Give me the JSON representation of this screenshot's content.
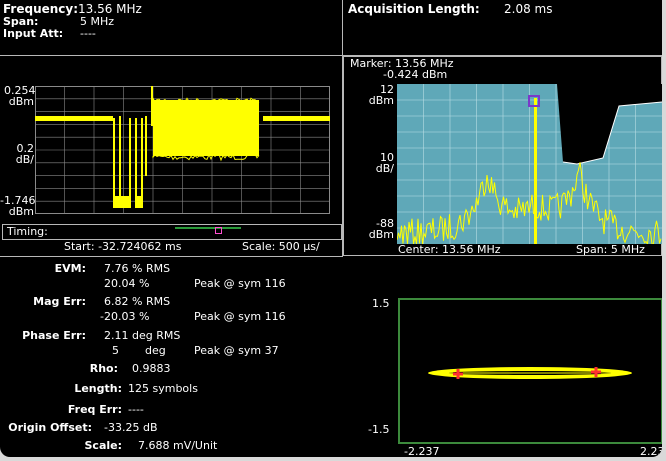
{
  "header": {
    "frequency_label": "Frequency:",
    "frequency_value": "13.56 MHz",
    "span_label": "Span:",
    "span_value": "5 MHz",
    "input_att_label": "Input Att:",
    "input_att_value": "----",
    "acq_label": "Acquisition Length:",
    "acq_value": "2.08 ms"
  },
  "time_plot": {
    "top_value": "0.254",
    "top_unit": "dBm",
    "mid_value": "0.2",
    "mid_unit": "dB/",
    "bottom_value": "-1.746",
    "bottom_unit": "dBm",
    "trace_color": "#ffff00",
    "grid_color": "#8a8a8a"
  },
  "timing": {
    "label": "Timing:",
    "start": "Start: -32.724062 ms",
    "scale": "Scale: 500 µs/"
  },
  "spectrum": {
    "marker_freq": "Marker: 13.56 MHz",
    "marker_level": "-0.424 dBm",
    "top_value": "12",
    "top_unit": "dBm",
    "mid_value": "10",
    "mid_unit": "dB/",
    "bottom_value": "-88",
    "bottom_unit": "dBm",
    "center": "Center: 13.56 MHz",
    "span": "Span: 5 MHz",
    "bg_color": "#5fa8b8",
    "trace_color": "#ffff00"
  },
  "metrics": {
    "evm_label": "EVM:",
    "evm_rms": "7.76 % RMS",
    "evm_peak": "20.04 %",
    "evm_peak_at": "Peak @ sym 116",
    "mag_label": "Mag Err:",
    "mag_rms": "6.82 % RMS",
    "mag_peak": "-20.03 %",
    "mag_peak_at": "Peak @ sym 116",
    "phase_label": "Phase Err:",
    "phase_rms": "2.11 deg RMS",
    "phase_peak": "5",
    "phase_peak_unit": "deg",
    "phase_peak_at": "Peak @ sym 37",
    "rho_label": "Rho:",
    "rho_value": "0.9883",
    "length_label": "Length:",
    "length_value": "125 symbols",
    "freq_err_label": "Freq Err:",
    "freq_err_value": "----",
    "origin_label": "Origin Offset:",
    "origin_value": "-33.25 dB",
    "scale_label": "Scale:",
    "scale_value": "7.688 mV/Unit"
  },
  "constellation": {
    "y_top": "1.5",
    "y_bottom": "-1.5",
    "x_left": "-2.237",
    "x_right": "2.237",
    "frame_color": "#3c8a3c",
    "trace_color": "#ffff00",
    "point_color": "#ff3030"
  }
}
